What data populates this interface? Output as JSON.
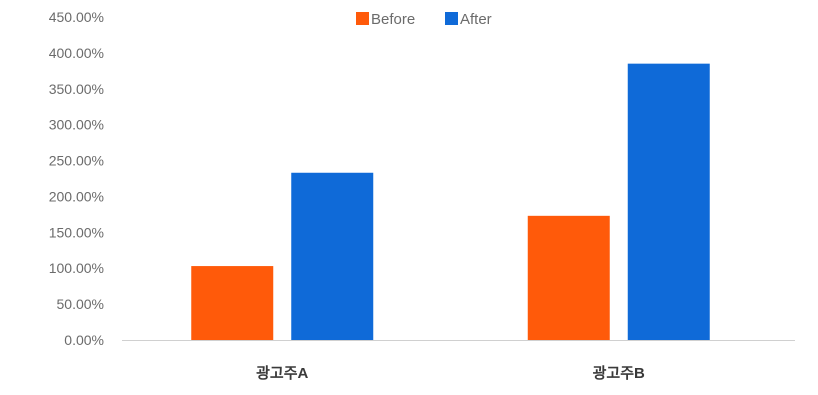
{
  "chart_data": {
    "type": "bar",
    "categories": [
      "광고주A",
      "광고주B"
    ],
    "series": [
      {
        "name": "Before",
        "color": "#ff5a0a",
        "values": [
          103,
          173
        ]
      },
      {
        "name": "After",
        "color": "#0f6ad8",
        "values": [
          233,
          385
        ]
      }
    ],
    "y_unit": "%",
    "ylim": [
      0,
      450
    ],
    "yticks": [
      0,
      50,
      100,
      150,
      200,
      250,
      300,
      350,
      400,
      450
    ],
    "ytick_labels": [
      "0.00%",
      "50.00%",
      "100.00%",
      "150.00%",
      "200.00%",
      "250.00%",
      "300.00%",
      "350.00%",
      "400.00%",
      "450.00%"
    ],
    "legend_position": "top-center",
    "grid": false
  }
}
